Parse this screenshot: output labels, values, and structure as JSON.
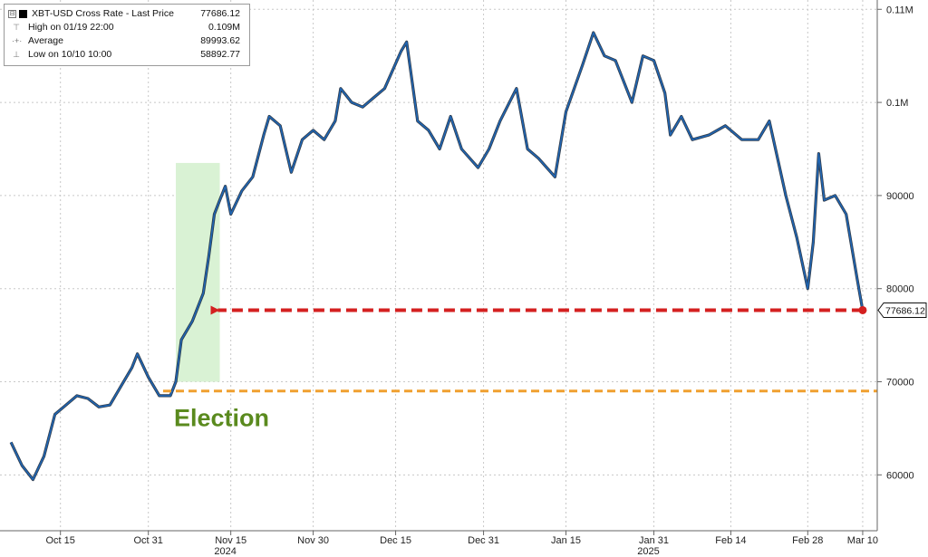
{
  "legend": {
    "toggle_glyph": "⊟",
    "series_label": "XBT-USD Cross Rate - Last Price",
    "series_value": "77686.12",
    "rows": [
      {
        "icon": "high-marker-icon",
        "label": "High on 01/19 22:00",
        "value": "0.109M"
      },
      {
        "icon": "average-marker-icon",
        "label": "Average",
        "value": "89993.62"
      },
      {
        "icon": "low-marker-icon",
        "label": "Low on 10/10 10:00",
        "value": "58892.77"
      }
    ]
  },
  "colors": {
    "price_line": "#1f66b5",
    "price_shadow": "#0d1a2a",
    "election_band": "#d9f2d4",
    "election_line": "#f0a030",
    "election_text": "#5a8a1e",
    "arrow": "#d42020",
    "grid": "#c8c8c8"
  },
  "chart_data": {
    "type": "line",
    "title": "XBT-USD Cross Rate - Last Price",
    "y_axis_position": "right",
    "ylim": [
      54000,
      111000
    ],
    "y_ticks": [
      {
        "value": 60000,
        "label": "60000"
      },
      {
        "value": 70000,
        "label": "70000"
      },
      {
        "value": 80000,
        "label": "80000"
      },
      {
        "value": 90000,
        "label": "90000"
      },
      {
        "value": 100000,
        "label": "0.1M"
      },
      {
        "value": 110000,
        "label": "0.11M"
      }
    ],
    "x_ticks": [
      {
        "date": "2024-10-15",
        "label": "Oct 15"
      },
      {
        "date": "2024-10-31",
        "label": "Oct 31"
      },
      {
        "date": "2024-11-15",
        "label": "Nov 15"
      },
      {
        "date": "2024-11-30",
        "label": "Nov 30"
      },
      {
        "date": "2024-12-15",
        "label": "Dec 15"
      },
      {
        "date": "2024-12-31",
        "label": "Dec 31"
      },
      {
        "date": "2025-01-15",
        "label": "Jan 15"
      },
      {
        "date": "2025-01-31",
        "label": "Jan 31"
      },
      {
        "date": "2025-02-14",
        "label": "Feb 14"
      },
      {
        "date": "2025-02-28",
        "label": "Feb 28"
      },
      {
        "date": "2025-03-10",
        "label": "Mar 10"
      }
    ],
    "year_labels": [
      {
        "date": "2024-11-14",
        "label": "2024"
      },
      {
        "date": "2025-01-30",
        "label": "2025"
      }
    ],
    "grid": true,
    "series": [
      {
        "name": "XBT-USD Cross Rate - Last Price",
        "x": [
          "2024-10-06",
          "2024-10-08",
          "2024-10-10",
          "2024-10-12",
          "2024-10-14",
          "2024-10-16",
          "2024-10-18",
          "2024-10-20",
          "2024-10-22",
          "2024-10-24",
          "2024-10-26",
          "2024-10-28",
          "2024-10-29",
          "2024-10-31",
          "2024-11-02",
          "2024-11-04",
          "2024-11-05",
          "2024-11-06",
          "2024-11-08",
          "2024-11-10",
          "2024-11-11",
          "2024-11-12",
          "2024-11-13",
          "2024-11-14",
          "2024-11-15",
          "2024-11-17",
          "2024-11-19",
          "2024-11-21",
          "2024-11-22",
          "2024-11-24",
          "2024-11-26",
          "2024-11-28",
          "2024-11-30",
          "2024-12-02",
          "2024-12-04",
          "2024-12-05",
          "2024-12-07",
          "2024-12-09",
          "2024-12-11",
          "2024-12-13",
          "2024-12-16",
          "2024-12-17",
          "2024-12-19",
          "2024-12-21",
          "2024-12-23",
          "2024-12-25",
          "2024-12-27",
          "2024-12-30",
          "2025-01-01",
          "2025-01-03",
          "2025-01-06",
          "2025-01-08",
          "2025-01-10",
          "2025-01-13",
          "2025-01-15",
          "2025-01-18",
          "2025-01-20",
          "2025-01-22",
          "2025-01-24",
          "2025-01-27",
          "2025-01-29",
          "2025-01-31",
          "2025-02-02",
          "2025-02-03",
          "2025-02-05",
          "2025-02-07",
          "2025-02-10",
          "2025-02-13",
          "2025-02-16",
          "2025-02-19",
          "2025-02-21",
          "2025-02-24",
          "2025-02-26",
          "2025-02-28",
          "2025-03-01",
          "2025-03-02",
          "2025-03-03",
          "2025-03-05",
          "2025-03-07",
          "2025-03-09",
          "2025-03-10"
        ],
        "values": [
          63500,
          61000,
          59500,
          62000,
          66500,
          67500,
          68500,
          68200,
          67300,
          67500,
          69500,
          71500,
          73000,
          70500,
          68500,
          68500,
          70000,
          74500,
          76500,
          79500,
          83500,
          88000,
          89500,
          91000,
          88000,
          90500,
          92000,
          96500,
          98500,
          97500,
          92500,
          96000,
          97000,
          96000,
          98000,
          101500,
          100000,
          99500,
          100500,
          101500,
          105500,
          106500,
          98000,
          97000,
          95000,
          98500,
          95000,
          93000,
          95000,
          98000,
          101500,
          95000,
          94000,
          92000,
          99000,
          104000,
          107500,
          105000,
          104500,
          100000,
          105000,
          104500,
          101000,
          96500,
          98500,
          96000,
          96500,
          97500,
          96000,
          96000,
          98000,
          90000,
          85500,
          80000,
          85000,
          94500,
          89500,
          90000,
          88000,
          81000,
          77686
        ]
      }
    ],
    "last_value_label": "77686.12",
    "annotations": [
      {
        "type": "shaded_band",
        "x_start": "2024-11-05",
        "x_end": "2024-11-13",
        "y_top": 93500,
        "y_bottom": 70000
      },
      {
        "type": "horizontal_line",
        "y": 69000,
        "style": "dashed",
        "color": "#f0a030"
      },
      {
        "type": "text",
        "label": "Election",
        "x": "2024-11-05",
        "y": 66500
      },
      {
        "type": "arrow",
        "y": 77686,
        "x_from": "2025-03-10",
        "x_to": "2024-11-11",
        "style": "dashed",
        "color": "#d42020"
      }
    ]
  }
}
